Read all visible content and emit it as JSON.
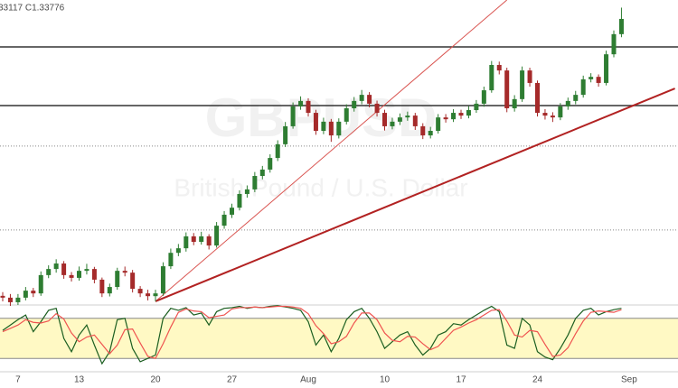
{
  "chart_data": {
    "type": "candlestick",
    "header_text": "33117 C1.33776",
    "watermark": {
      "symbol": "GBPUSD",
      "description": "British Pound / U.S. Dollar"
    },
    "categories": [
      null,
      null,
      "7",
      null,
      null,
      null,
      null,
      null,
      null,
      null,
      "13",
      null,
      null,
      null,
      null,
      null,
      null,
      null,
      null,
      null,
      "20",
      null,
      null,
      null,
      null,
      null,
      null,
      null,
      null,
      null,
      "27",
      null,
      null,
      null,
      null,
      null,
      null,
      null,
      null,
      null,
      "Aug",
      null,
      null,
      null,
      null,
      null,
      null,
      null,
      null,
      null,
      "10",
      null,
      null,
      null,
      null,
      null,
      null,
      null,
      null,
      null,
      "17",
      null,
      null,
      null,
      null,
      null,
      null,
      null,
      null,
      null,
      "24",
      null,
      null,
      null,
      null,
      null,
      null,
      null,
      null,
      null,
      null,
      null,
      "Sep"
    ],
    "open": [
      1.247,
      1.2464,
      1.2449,
      1.2464,
      1.2487,
      1.2478,
      1.2538,
      1.2558,
      1.2576,
      1.2538,
      1.2529,
      1.2552,
      1.2558,
      1.2523,
      1.2478,
      1.2499,
      1.2552,
      1.2546,
      1.2493,
      1.2478,
      1.2469,
      1.2478,
      1.2567,
      1.2611,
      1.2626,
      1.2665,
      1.2647,
      1.2665,
      1.2635,
      1.27,
      1.2736,
      1.2759,
      1.2804,
      1.2819,
      1.2863,
      1.2884,
      1.2922,
      1.2967,
      1.3026,
      1.3091,
      1.3109,
      1.307,
      1.3011,
      1.3041,
      1.2996,
      1.3041,
      1.3085,
      1.3109,
      1.3129,
      1.31,
      1.307,
      1.3026,
      1.3041,
      1.3055,
      1.3061,
      1.3026,
      1.2996,
      1.3011,
      1.3055,
      1.3049,
      1.307,
      1.3061,
      1.3079,
      1.31,
      1.3144,
      1.3227,
      1.3209,
      1.3085,
      1.3115,
      1.3209,
      1.3168,
      1.307,
      1.3061,
      1.3055,
      1.3091,
      1.3109,
      1.3129,
      1.318,
      1.3188,
      1.3168,
      1.3262,
      1.3328,
      null
    ],
    "high": [
      1.2482,
      1.2476,
      1.2476,
      1.2499,
      1.2496,
      1.255,
      1.257,
      1.259,
      1.2584,
      1.2548,
      1.2566,
      1.2575,
      1.2565,
      1.253,
      1.251,
      1.2562,
      1.2566,
      1.2555,
      1.2502,
      1.249,
      1.249,
      1.258,
      1.2625,
      1.264,
      1.2678,
      1.2676,
      1.268,
      1.2672,
      1.2712,
      1.2748,
      1.2772,
      1.2816,
      1.2832,
      1.2876,
      1.2896,
      1.2934,
      1.298,
      1.304,
      1.3104,
      1.3124,
      1.3118,
      1.308,
      1.3054,
      1.305,
      1.3052,
      1.3098,
      1.3122,
      1.3145,
      1.3138,
      1.311,
      1.308,
      1.3054,
      1.3068,
      1.3074,
      1.307,
      1.3036,
      1.3024,
      1.3066,
      1.3066,
      1.3082,
      1.308,
      1.3092,
      1.3112,
      1.3156,
      1.324,
      1.3238,
      1.3218,
      1.3128,
      1.3222,
      1.3218,
      1.3176,
      1.3082,
      1.3072,
      1.3102,
      1.312,
      1.3142,
      1.3192,
      1.32,
      1.3196,
      1.3274,
      1.334,
      1.3415,
      null
    ],
    "low": [
      1.2452,
      1.2437,
      1.244,
      1.2455,
      1.2466,
      1.247,
      1.2528,
      1.2546,
      1.2526,
      1.2517,
      1.252,
      1.254,
      1.2511,
      1.2466,
      1.2468,
      1.249,
      1.2534,
      1.2481,
      1.2466,
      1.2455,
      1.2452,
      1.247,
      1.2558,
      1.26,
      1.2615,
      1.2636,
      1.2638,
      1.2622,
      1.2628,
      1.269,
      1.2725,
      1.275,
      1.2792,
      1.281,
      1.2852,
      1.2874,
      1.2912,
      1.2958,
      1.3018,
      1.308,
      1.3058,
      1.2998,
      1.3,
      1.2975,
      1.2986,
      1.3032,
      1.3074,
      1.3098,
      1.3088,
      1.3058,
      1.3012,
      1.3016,
      1.303,
      1.3044,
      1.3014,
      1.2984,
      1.2986,
      1.3002,
      1.3038,
      1.304,
      1.305,
      1.3052,
      1.307,
      1.309,
      1.3136,
      1.3196,
      1.3072,
      1.3074,
      1.3106,
      1.3156,
      1.3058,
      1.3048,
      1.304,
      1.3046,
      1.308,
      1.3098,
      1.312,
      1.317,
      1.3156,
      1.316,
      1.3252,
      1.3318,
      null
    ],
    "close": [
      1.2464,
      1.2449,
      1.2464,
      1.2487,
      1.2478,
      1.2538,
      1.2558,
      1.2576,
      1.2538,
      1.2529,
      1.2552,
      1.2558,
      1.2523,
      1.2478,
      1.2499,
      1.2552,
      1.2546,
      1.2493,
      1.2478,
      1.2469,
      1.2478,
      1.2567,
      1.2611,
      1.2626,
      1.2665,
      1.2647,
      1.2665,
      1.2635,
      1.27,
      1.2736,
      1.2759,
      1.2804,
      1.2819,
      1.2863,
      1.2884,
      1.2922,
      1.2967,
      1.3026,
      1.3091,
      1.3109,
      1.307,
      1.3011,
      1.3041,
      1.2996,
      1.3041,
      1.3085,
      1.3109,
      1.3129,
      1.31,
      1.307,
      1.3026,
      1.3041,
      1.3055,
      1.3061,
      1.3026,
      1.2996,
      1.3011,
      1.3055,
      1.3049,
      1.307,
      1.3061,
      1.3079,
      1.31,
      1.3144,
      1.3227,
      1.3209,
      1.3085,
      1.3115,
      1.3209,
      1.3168,
      1.307,
      1.3061,
      1.3055,
      1.3091,
      1.3109,
      1.3129,
      1.318,
      1.3188,
      1.3168,
      1.3262,
      1.3328,
      1.3378,
      null
    ],
    "up_color": "#2e7d32",
    "down_color": "#a52a2a",
    "ylim": [
      1.244,
      1.344
    ],
    "levels": [
      {
        "value": 1.3286,
        "style": "solid",
        "color": "#333333"
      },
      {
        "value": 1.3094,
        "style": "solid",
        "color": "#333333"
      },
      {
        "value": 1.2961,
        "style": "dotted",
        "color": "#888888"
      },
      {
        "value": 1.2686,
        "style": "dotted",
        "color": "#888888"
      }
    ],
    "trendlines": [
      {
        "from": [
          20,
          1.2452
        ],
        "to": [
          66,
          1.344
        ],
        "color": "#d9534f",
        "width": 1
      },
      {
        "from": [
          20,
          1.2452
        ],
        "to": [
          88,
          1.315
        ],
        "color": "#b22222",
        "width": 2
      }
    ],
    "oscillator": {
      "type": "line",
      "ylim": [
        0,
        100
      ],
      "bands": [
        20,
        80
      ],
      "band_color": "#fff9c4",
      "series": [
        {
          "color": "#1b5e20",
          "values": [
            62,
            70,
            78,
            85,
            60,
            75,
            92,
            95,
            50,
            30,
            55,
            70,
            40,
            12,
            30,
            78,
            80,
            35,
            15,
            20,
            25,
            80,
            95,
            92,
            96,
            85,
            88,
            70,
            90,
            95,
            96,
            98,
            95,
            97,
            96,
            98,
            99,
            97,
            95,
            92,
            75,
            40,
            55,
            30,
            50,
            78,
            90,
            95,
            80,
            60,
            35,
            45,
            55,
            60,
            40,
            25,
            35,
            55,
            60,
            72,
            70,
            78,
            85,
            92,
            98,
            90,
            40,
            35,
            80,
            70,
            30,
            22,
            18,
            35,
            55,
            80,
            92,
            95,
            85,
            90,
            93,
            95,
            null
          ]
        },
        {
          "color": "#ef5350",
          "values": [
            60,
            65,
            70,
            78,
            74,
            73,
            76,
            87,
            79,
            58,
            45,
            52,
            55,
            41,
            27,
            40,
            63,
            64,
            43,
            23,
            20,
            42,
            67,
            89,
            94,
            91,
            90,
            81,
            83,
            85,
            94,
            96,
            96,
            97,
            96,
            97,
            98,
            98,
            97,
            95,
            87,
            69,
            57,
            42,
            45,
            53,
            73,
            88,
            88,
            78,
            58,
            47,
            45,
            53,
            52,
            42,
            33,
            38,
            50,
            62,
            67,
            73,
            78,
            85,
            92,
            93,
            76,
            55,
            52,
            62,
            60,
            41,
            23,
            25,
            36,
            57,
            76,
            89,
            91,
            90,
            89,
            93,
            null
          ]
        }
      ]
    }
  }
}
